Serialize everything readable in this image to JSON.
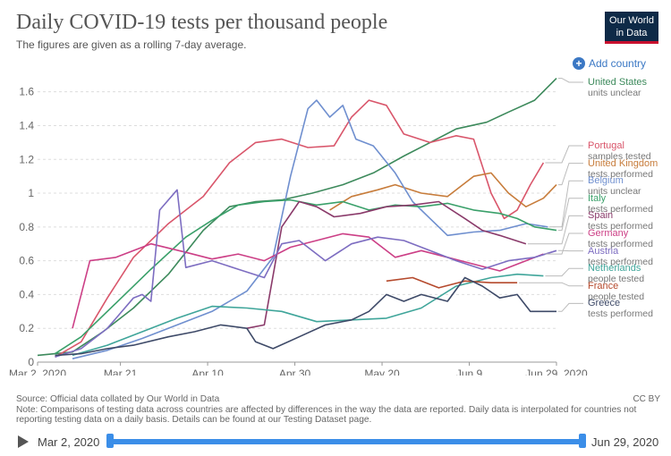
{
  "header": {
    "title": "Daily COVID-19 tests per thousand people",
    "subtitle": "The figures are given as a rolling 7-day average.",
    "logo_line1": "Our World",
    "logo_line2": "in Data",
    "add_country": "Add country"
  },
  "footer": {
    "source": "Source: Official data collated by Our World in Data",
    "note": "Note: Comparisons of testing data across countries are affected by differences in the way the data are reported. Daily data is interpolated for countries not reporting testing data on a daily basis. Details can be found at our Testing Dataset page.",
    "license": "CC BY"
  },
  "timeline": {
    "start": "Mar 2, 2020",
    "end": "Jun 29, 2020"
  },
  "chart_data": {
    "type": "line",
    "title": "Daily COVID-19 tests per thousand people",
    "subtitle": "The figures are given as a rolling 7-day average.",
    "xlabel": "",
    "ylabel": "",
    "x_start": "2020-03-02",
    "x_ticks": [
      {
        "day": 0,
        "label": "Mar 2, 2020"
      },
      {
        "day": 19,
        "label": "Mar 21"
      },
      {
        "day": 39,
        "label": "Apr 10"
      },
      {
        "day": 59,
        "label": "Apr 30"
      },
      {
        "day": 79,
        "label": "May 20"
      },
      {
        "day": 99,
        "label": "Jun 9"
      },
      {
        "day": 119,
        "label": "Jun 29, 2020"
      }
    ],
    "y_ticks": [
      0,
      0.2,
      0.4,
      0.6,
      0.8,
      1,
      1.2,
      1.4,
      1.6
    ],
    "xlim": [
      0,
      119
    ],
    "ylim": [
      0,
      1.72
    ],
    "grid": "horizontal",
    "legend": "right",
    "series": [
      {
        "name": "United States",
        "sub": "units unclear",
        "color": "#3d8a5c",
        "points": [
          [
            0,
            0.04
          ],
          [
            8,
            0.06
          ],
          [
            15,
            0.18
          ],
          [
            22,
            0.32
          ],
          [
            30,
            0.52
          ],
          [
            38,
            0.78
          ],
          [
            44,
            0.92
          ],
          [
            50,
            0.95
          ],
          [
            56,
            0.96
          ],
          [
            63,
            1.0
          ],
          [
            70,
            1.05
          ],
          [
            77,
            1.12
          ],
          [
            84,
            1.22
          ],
          [
            90,
            1.3
          ],
          [
            96,
            1.38
          ],
          [
            103,
            1.42
          ],
          [
            108,
            1.48
          ],
          [
            114,
            1.55
          ],
          [
            119,
            1.68
          ]
        ]
      },
      {
        "name": "Portugal",
        "sub": "samples tested",
        "color": "#d9566b",
        "points": [
          [
            4,
            0.03
          ],
          [
            10,
            0.12
          ],
          [
            16,
            0.38
          ],
          [
            22,
            0.62
          ],
          [
            30,
            0.82
          ],
          [
            38,
            0.98
          ],
          [
            44,
            1.18
          ],
          [
            50,
            1.3
          ],
          [
            56,
            1.32
          ],
          [
            62,
            1.27
          ],
          [
            68,
            1.28
          ],
          [
            72,
            1.45
          ],
          [
            76,
            1.55
          ],
          [
            80,
            1.52
          ],
          [
            84,
            1.35
          ],
          [
            90,
            1.3
          ],
          [
            96,
            1.34
          ],
          [
            100,
            1.32
          ],
          [
            104,
            1.0
          ],
          [
            107,
            0.85
          ],
          [
            110,
            0.9
          ],
          [
            113,
            1.05
          ],
          [
            116,
            1.18
          ]
        ]
      },
      {
        "name": "United Kingdom",
        "sub": "tests performed",
        "color": "#c77c3b",
        "points": [
          [
            67,
            0.9
          ],
          [
            72,
            0.98
          ],
          [
            78,
            1.02
          ],
          [
            82,
            1.05
          ],
          [
            88,
            1.0
          ],
          [
            94,
            0.98
          ],
          [
            100,
            1.1
          ],
          [
            104,
            1.12
          ],
          [
            108,
            1.0
          ],
          [
            112,
            0.92
          ],
          [
            116,
            0.97
          ],
          [
            119,
            1.05
          ]
        ]
      },
      {
        "name": "Belgium",
        "sub": "units unclear",
        "color": "#6f8fcf",
        "points": [
          [
            8,
            0.02
          ],
          [
            16,
            0.07
          ],
          [
            24,
            0.14
          ],
          [
            32,
            0.22
          ],
          [
            40,
            0.3
          ],
          [
            48,
            0.42
          ],
          [
            54,
            0.62
          ],
          [
            58,
            1.1
          ],
          [
            62,
            1.5
          ],
          [
            64,
            1.55
          ],
          [
            67,
            1.45
          ],
          [
            70,
            1.52
          ],
          [
            73,
            1.32
          ],
          [
            77,
            1.28
          ],
          [
            82,
            1.12
          ],
          [
            86,
            0.95
          ],
          [
            90,
            0.85
          ],
          [
            94,
            0.75
          ],
          [
            100,
            0.77
          ],
          [
            106,
            0.78
          ],
          [
            112,
            0.82
          ],
          [
            117,
            0.8
          ]
        ]
      },
      {
        "name": "Italy",
        "sub": "tests performed",
        "color": "#3aa06a",
        "points": [
          [
            4,
            0.05
          ],
          [
            10,
            0.15
          ],
          [
            18,
            0.35
          ],
          [
            26,
            0.55
          ],
          [
            34,
            0.74
          ],
          [
            40,
            0.84
          ],
          [
            46,
            0.93
          ],
          [
            52,
            0.95
          ],
          [
            58,
            0.96
          ],
          [
            64,
            0.93
          ],
          [
            70,
            0.95
          ],
          [
            76,
            0.9
          ],
          [
            82,
            0.93
          ],
          [
            88,
            0.92
          ],
          [
            94,
            0.94
          ],
          [
            100,
            0.9
          ],
          [
            106,
            0.88
          ],
          [
            110,
            0.85
          ],
          [
            114,
            0.8
          ],
          [
            119,
            0.78
          ]
        ]
      },
      {
        "name": "Spain",
        "sub": "tests performed",
        "color": "#8a3a6a",
        "points": [
          [
            48,
            0.2
          ],
          [
            52,
            0.22
          ],
          [
            56,
            0.8
          ],
          [
            60,
            0.95
          ],
          [
            64,
            0.92
          ],
          [
            68,
            0.86
          ],
          [
            74,
            0.88
          ],
          [
            80,
            0.92
          ],
          [
            86,
            0.93
          ],
          [
            92,
            0.95
          ],
          [
            98,
            0.85
          ],
          [
            102,
            0.78
          ],
          [
            106,
            0.75
          ],
          [
            112,
            0.7
          ]
        ]
      },
      {
        "name": "Germany",
        "sub": "tests performed",
        "color": "#cc3f86",
        "points": [
          [
            8,
            0.2
          ],
          [
            12,
            0.6
          ],
          [
            18,
            0.62
          ],
          [
            26,
            0.7
          ],
          [
            34,
            0.65
          ],
          [
            40,
            0.61
          ],
          [
            46,
            0.64
          ],
          [
            52,
            0.6
          ],
          [
            58,
            0.68
          ],
          [
            64,
            0.72
          ],
          [
            70,
            0.76
          ],
          [
            76,
            0.74
          ],
          [
            82,
            0.62
          ],
          [
            88,
            0.66
          ],
          [
            94,
            0.62
          ],
          [
            100,
            0.58
          ],
          [
            106,
            0.54
          ],
          [
            112,
            0.6
          ],
          [
            116,
            0.64
          ]
        ]
      },
      {
        "name": "Austria",
        "sub": "tests performed",
        "color": "#7d6dc1",
        "points": [
          [
            4,
            0.03
          ],
          [
            10,
            0.08
          ],
          [
            16,
            0.2
          ],
          [
            22,
            0.38
          ],
          [
            24,
            0.4
          ],
          [
            26,
            0.36
          ],
          [
            28,
            0.9
          ],
          [
            32,
            1.02
          ],
          [
            34,
            0.56
          ],
          [
            40,
            0.6
          ],
          [
            46,
            0.55
          ],
          [
            52,
            0.5
          ],
          [
            56,
            0.7
          ],
          [
            60,
            0.72
          ],
          [
            66,
            0.6
          ],
          [
            72,
            0.7
          ],
          [
            78,
            0.74
          ],
          [
            84,
            0.72
          ],
          [
            90,
            0.66
          ],
          [
            96,
            0.6
          ],
          [
            102,
            0.55
          ],
          [
            108,
            0.6
          ],
          [
            114,
            0.62
          ],
          [
            119,
            0.66
          ]
        ]
      },
      {
        "name": "Netherlands",
        "sub": "people tested",
        "color": "#3fa59a",
        "points": [
          [
            8,
            0.04
          ],
          [
            16,
            0.1
          ],
          [
            24,
            0.18
          ],
          [
            32,
            0.26
          ],
          [
            40,
            0.33
          ],
          [
            48,
            0.32
          ],
          [
            56,
            0.3
          ],
          [
            64,
            0.24
          ],
          [
            72,
            0.25
          ],
          [
            80,
            0.26
          ],
          [
            88,
            0.32
          ],
          [
            96,
            0.45
          ],
          [
            104,
            0.5
          ],
          [
            110,
            0.52
          ],
          [
            116,
            0.51
          ]
        ]
      },
      {
        "name": "France",
        "sub": "people tested",
        "color": "#b54a2d",
        "points": [
          [
            80,
            0.48
          ],
          [
            86,
            0.5
          ],
          [
            92,
            0.44
          ],
          [
            98,
            0.48
          ],
          [
            104,
            0.47
          ],
          [
            110,
            0.47
          ]
        ]
      },
      {
        "name": "Greece",
        "sub": "tests performed",
        "color": "#3e4a68",
        "points": [
          [
            4,
            0.04
          ],
          [
            10,
            0.05
          ],
          [
            16,
            0.08
          ],
          [
            22,
            0.1
          ],
          [
            30,
            0.15
          ],
          [
            36,
            0.18
          ],
          [
            42,
            0.22
          ],
          [
            48,
            0.2
          ],
          [
            50,
            0.12
          ],
          [
            54,
            0.08
          ],
          [
            60,
            0.15
          ],
          [
            66,
            0.22
          ],
          [
            72,
            0.25
          ],
          [
            76,
            0.3
          ],
          [
            80,
            0.4
          ],
          [
            84,
            0.36
          ],
          [
            88,
            0.4
          ],
          [
            94,
            0.36
          ],
          [
            98,
            0.5
          ],
          [
            102,
            0.45
          ],
          [
            106,
            0.38
          ],
          [
            110,
            0.4
          ],
          [
            113,
            0.3
          ],
          [
            116,
            0.3
          ],
          [
            119,
            0.3
          ]
        ]
      }
    ]
  }
}
